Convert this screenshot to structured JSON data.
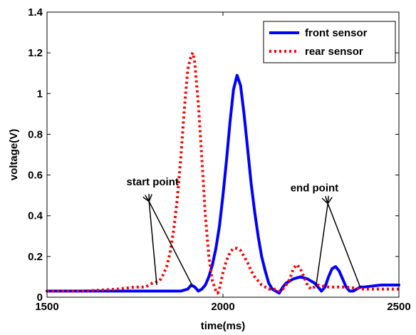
{
  "chart_data": {
    "type": "line",
    "title": "",
    "xlabel": "time(ms)",
    "ylabel": "voltage(V)",
    "xlim": [
      1500,
      2500
    ],
    "ylim": [
      0,
      1.4
    ],
    "xticks": [
      1500,
      2000,
      2500
    ],
    "xtick_labels": [
      "1500",
      "2000",
      "2500"
    ],
    "yticks": [
      0,
      0.2,
      0.4,
      0.6,
      0.8,
      1,
      1.2,
      1.4
    ],
    "ytick_labels": [
      "0",
      "0.2",
      "0.4",
      "0.6",
      "0.8",
      "1",
      "1.2",
      "1.4"
    ],
    "grid": false,
    "legend_position": "top-right",
    "series": [
      {
        "name": "front sensor",
        "color": "#0000ff",
        "style": "solid",
        "x": [
          1500,
          1600,
          1700,
          1800,
          1850,
          1880,
          1900,
          1910,
          1920,
          1930,
          1940,
          1950,
          1960,
          1970,
          1980,
          1990,
          2000,
          2010,
          2020,
          2030,
          2040,
          2050,
          2060,
          2070,
          2080,
          2090,
          2100,
          2110,
          2120,
          2130,
          2140,
          2150,
          2160,
          2170,
          2180,
          2190,
          2200,
          2220,
          2240,
          2260,
          2270,
          2280,
          2290,
          2300,
          2310,
          2320,
          2330,
          2340,
          2350,
          2360,
          2370,
          2380,
          2390,
          2400,
          2450,
          2500
        ],
        "y": [
          0.03,
          0.03,
          0.03,
          0.03,
          0.03,
          0.03,
          0.04,
          0.06,
          0.05,
          0.03,
          0.04,
          0.06,
          0.1,
          0.16,
          0.24,
          0.35,
          0.5,
          0.67,
          0.86,
          1.02,
          1.09,
          1.04,
          0.9,
          0.73,
          0.56,
          0.42,
          0.3,
          0.2,
          0.13,
          0.07,
          0.04,
          0.03,
          0.02,
          0.05,
          0.07,
          0.08,
          0.09,
          0.1,
          0.09,
          0.07,
          0.05,
          0.03,
          0.05,
          0.1,
          0.14,
          0.15,
          0.13,
          0.09,
          0.05,
          0.03,
          0.03,
          0.04,
          0.05,
          0.05,
          0.06,
          0.06
        ]
      },
      {
        "name": "rear sensor",
        "color": "#ff0000",
        "style": "dotted",
        "x": [
          1500,
          1600,
          1700,
          1750,
          1780,
          1800,
          1820,
          1830,
          1840,
          1850,
          1860,
          1870,
          1880,
          1890,
          1900,
          1910,
          1915,
          1920,
          1930,
          1940,
          1950,
          1960,
          1970,
          1980,
          1985,
          1990,
          2000,
          2010,
          2020,
          2030,
          2040,
          2050,
          2060,
          2070,
          2080,
          2090,
          2100,
          2110,
          2120,
          2130,
          2140,
          2150,
          2160,
          2170,
          2180,
          2190,
          2200,
          2210,
          2220,
          2230,
          2240,
          2250,
          2260,
          2270,
          2300,
          2350,
          2400,
          2450,
          2500
        ],
        "y": [
          0.03,
          0.03,
          0.04,
          0.05,
          0.05,
          0.07,
          0.08,
          0.11,
          0.15,
          0.22,
          0.33,
          0.48,
          0.68,
          0.92,
          1.12,
          1.19,
          1.2,
          1.15,
          0.95,
          0.68,
          0.4,
          0.2,
          0.08,
          0.03,
          0.02,
          0.04,
          0.12,
          0.18,
          0.22,
          0.24,
          0.24,
          0.23,
          0.2,
          0.17,
          0.13,
          0.1,
          0.08,
          0.06,
          0.05,
          0.04,
          0.04,
          0.04,
          0.03,
          0.04,
          0.06,
          0.09,
          0.14,
          0.16,
          0.14,
          0.1,
          0.06,
          0.04,
          0.05,
          0.06,
          0.05,
          0.05,
          0.04,
          0.04,
          0.04
        ]
      }
    ],
    "annotations": [
      {
        "text": "start point",
        "label_x": 1800,
        "label_y": 0.55,
        "anchor_x": 1790,
        "anchor_y": 0.47,
        "targets": [
          [
            1812,
            0.06
          ],
          [
            1915,
            0.05
          ]
        ]
      },
      {
        "text": "end point",
        "label_x": 2260,
        "label_y": 0.52,
        "anchor_x": 2298,
        "anchor_y": 0.46,
        "targets": [
          [
            2265,
            0.06
          ],
          [
            2390,
            0.05
          ]
        ]
      }
    ]
  }
}
